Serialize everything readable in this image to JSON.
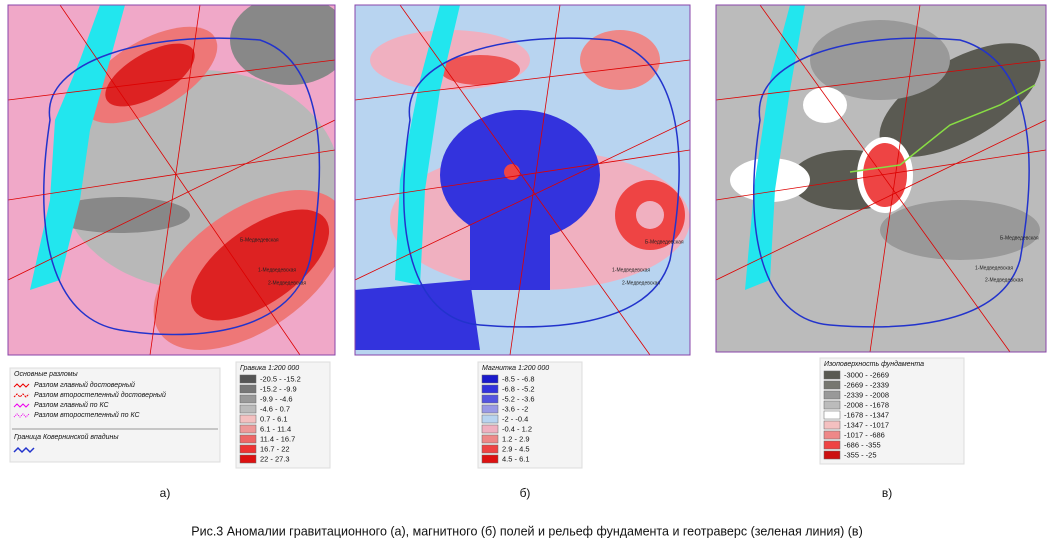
{
  "panels": [
    {
      "label": "а)",
      "places": [
        "1-Медведевская",
        "2-Медведевская",
        "Б-Медведевская"
      ]
    },
    {
      "label": "б)",
      "places": [
        "1-Медведевская",
        "2-Медведевская",
        "Б-Медведевская"
      ]
    },
    {
      "label": "в)",
      "places": [
        "1-Медведевская",
        "2-Медведевская",
        "Б-Медведевская"
      ]
    }
  ],
  "faults_legend": {
    "title": "Основные разломы",
    "items": [
      "Разлом главный достоверный",
      "Разлом второстепенный достоверный",
      "Разлом главный по КС",
      "Разлом второстепенный по КС"
    ],
    "boundary": "Граница Ковернинской впадины"
  },
  "legends": [
    {
      "title": "Гравика 1:200 000",
      "items": [
        {
          "label": "-20.5 - -15.2",
          "color": "#555555"
        },
        {
          "label": "-15.2 - -9.9",
          "color": "#777777"
        },
        {
          "label": "-9.9 - -4.6",
          "color": "#999999"
        },
        {
          "label": "-4.6 - 0.7",
          "color": "#bbbbbb"
        },
        {
          "label": "0.7 - 6.1",
          "color": "#f4c0c0"
        },
        {
          "label": "6.1 - 11.4",
          "color": "#ee9999"
        },
        {
          "label": "11.4 - 16.7",
          "color": "#ee6666"
        },
        {
          "label": "16.7 - 22",
          "color": "#ee3333"
        },
        {
          "label": "22 - 27.3",
          "color": "#dd1111"
        }
      ]
    },
    {
      "title": "Магнитка 1:200 000",
      "items": [
        {
          "label": "-8.5 - -6.8",
          "color": "#1a1acc"
        },
        {
          "label": "-6.8 - -5.2",
          "color": "#3333dd"
        },
        {
          "label": "-5.2 - -3.6",
          "color": "#5555e0"
        },
        {
          "label": "-3.6 - -2",
          "color": "#9999e6"
        },
        {
          "label": "-2 - -0.4",
          "color": "#b8d4f0"
        },
        {
          "label": "-0.4 - 1.2",
          "color": "#f0b0c0"
        },
        {
          "label": "1.2 - 2.9",
          "color": "#ee8888"
        },
        {
          "label": "2.9 - 4.5",
          "color": "#ee4444"
        },
        {
          "label": "4.5 - 6.1",
          "color": "#dd1111"
        }
      ]
    },
    {
      "title": "Изоповерхность фундамента",
      "items": [
        {
          "label": "-3000 - -2669",
          "color": "#5a5a52"
        },
        {
          "label": "-2669 - -2339",
          "color": "#777770"
        },
        {
          "label": "-2339 - -2008",
          "color": "#999999"
        },
        {
          "label": "-2008 - -1678",
          "color": "#bbbbbb"
        },
        {
          "label": "-1678 - -1347",
          "color": "#ffffff"
        },
        {
          "label": "-1347 - -1017",
          "color": "#f4c0c0"
        },
        {
          "label": "-1017 - -686",
          "color": "#ee8888"
        },
        {
          "label": "-686 - -355",
          "color": "#ee4444"
        },
        {
          "label": "-355 - -25",
          "color": "#cc1111"
        }
      ]
    }
  ],
  "caption": "Рис.3 Аномалии гравитационного (а), магнитного (б) полей и рельеф фундамента и геотраверс (зеленая линия) (в)"
}
